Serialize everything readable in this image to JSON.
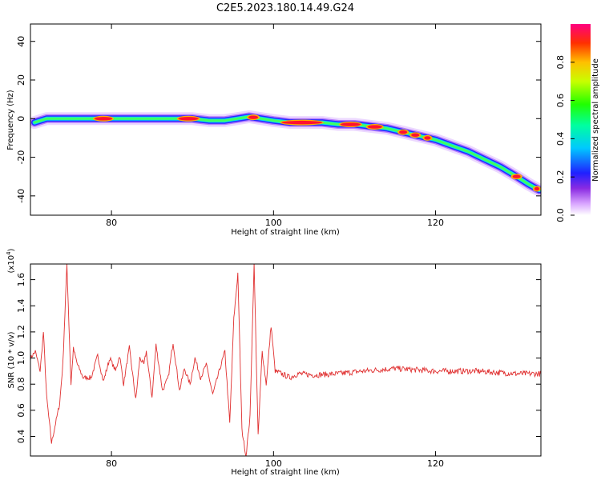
{
  "title": "C2E5.2023.180.14.49.G24",
  "spectrogram": {
    "type": "heatmap",
    "xlabel": "Height of straight line (km)",
    "ylabel": "Frequency (Hz)",
    "xlim": [
      70,
      133
    ],
    "ylim": [
      -50,
      49
    ],
    "xticks": [
      80,
      100,
      120
    ],
    "yticks": [
      40,
      20,
      0,
      -20,
      -40
    ],
    "ridge": [
      [
        70.5,
        -2
      ],
      [
        72,
        0
      ],
      [
        74,
        0
      ],
      [
        76,
        0
      ],
      [
        78,
        0
      ],
      [
        80,
        0
      ],
      [
        82,
        0
      ],
      [
        84,
        0
      ],
      [
        86,
        0
      ],
      [
        88,
        0
      ],
      [
        90,
        0
      ],
      [
        92,
        -1
      ],
      [
        94,
        -1
      ],
      [
        95.5,
        0
      ],
      [
        97,
        1
      ],
      [
        98.5,
        0
      ],
      [
        100,
        -1
      ],
      [
        102,
        -2
      ],
      [
        104,
        -2
      ],
      [
        106,
        -2
      ],
      [
        108,
        -3
      ],
      [
        110,
        -3
      ],
      [
        112,
        -4
      ],
      [
        114,
        -5
      ],
      [
        116,
        -7
      ],
      [
        118,
        -9
      ],
      [
        120,
        -11
      ],
      [
        122,
        -14
      ],
      [
        124,
        -17
      ],
      [
        126,
        -21
      ],
      [
        128,
        -25
      ],
      [
        130,
        -30
      ],
      [
        131.5,
        -34
      ],
      [
        132.8,
        -37
      ]
    ],
    "hotspots": [
      {
        "x": 79,
        "w": 2.2
      },
      {
        "x": 89.5,
        "w": 2.5
      },
      {
        "x": 97.5,
        "w": 1.2
      },
      {
        "x": 103.5,
        "w": 5
      },
      {
        "x": 109.5,
        "w": 2.5
      },
      {
        "x": 112.5,
        "w": 1.8
      },
      {
        "x": 116,
        "w": 1
      },
      {
        "x": 117.5,
        "w": 1
      },
      {
        "x": 119,
        "w": 0.8
      },
      {
        "x": 130,
        "w": 1
      },
      {
        "x": 132.5,
        "w": 0.6
      }
    ]
  },
  "colorbar": {
    "label": "Normalized spectral amplitude",
    "ticks": [
      "0.0",
      "0.2",
      "0.4",
      "0.6",
      "0.8"
    ],
    "range": [
      0,
      1
    ]
  },
  "snr": {
    "type": "line",
    "xlabel": "Height of straight line (km)",
    "ylabel": "SNR (10 * v/v)",
    "multiplier": "(x10",
    "exponent": "4",
    "multiplier_end": ")",
    "xlim": [
      70,
      133
    ],
    "ylim": [
      0.25,
      1.72
    ],
    "xticks": [
      80,
      100,
      120
    ],
    "yticks": [
      "0.4",
      "0.6",
      "0.8",
      "1.0",
      "1.2",
      "1.4",
      "1.6"
    ],
    "color": "#e03030",
    "keypoints": [
      [
        70,
        1.0
      ],
      [
        70.6,
        1.05
      ],
      [
        71.2,
        0.9
      ],
      [
        71.6,
        1.2
      ],
      [
        72.0,
        0.7
      ],
      [
        72.6,
        0.35
      ],
      [
        73.1,
        0.5
      ],
      [
        73.6,
        0.65
      ],
      [
        74.0,
        0.95
      ],
      [
        74.5,
        1.72
      ],
      [
        75.0,
        0.8
      ],
      [
        75.3,
        1.07
      ],
      [
        75.8,
        0.95
      ],
      [
        76.5,
        0.85
      ],
      [
        77.5,
        0.85
      ],
      [
        78.3,
        1.02
      ],
      [
        79.0,
        0.82
      ],
      [
        79.8,
        1.0
      ],
      [
        80.5,
        0.9
      ],
      [
        81.0,
        1.02
      ],
      [
        81.5,
        0.8
      ],
      [
        82.2,
        1.08
      ],
      [
        83.0,
        0.68
      ],
      [
        83.5,
        1.0
      ],
      [
        84.0,
        0.95
      ],
      [
        84.3,
        1.05
      ],
      [
        85.0,
        0.7
      ],
      [
        85.5,
        1.1
      ],
      [
        86.3,
        0.75
      ],
      [
        87.0,
        0.85
      ],
      [
        87.6,
        1.12
      ],
      [
        88.4,
        0.75
      ],
      [
        89.0,
        0.92
      ],
      [
        89.7,
        0.8
      ],
      [
        90.3,
        1.0
      ],
      [
        91.0,
        0.85
      ],
      [
        91.7,
        0.95
      ],
      [
        92.5,
        0.72
      ],
      [
        93.3,
        0.9
      ],
      [
        94.0,
        1.05
      ],
      [
        94.6,
        0.5
      ],
      [
        95.1,
        1.3
      ],
      [
        95.6,
        1.65
      ],
      [
        96.1,
        0.45
      ],
      [
        96.6,
        0.25
      ],
      [
        97.1,
        0.55
      ],
      [
        97.6,
        1.72
      ],
      [
        98.1,
        0.4
      ],
      [
        98.6,
        1.05
      ],
      [
        99.1,
        0.8
      ],
      [
        99.7,
        1.25
      ],
      [
        100.2,
        0.9
      ],
      [
        101,
        0.88
      ],
      [
        102,
        0.85
      ],
      [
        103,
        0.88
      ],
      [
        105,
        0.87
      ],
      [
        108,
        0.88
      ],
      [
        111,
        0.9
      ],
      [
        115,
        0.92
      ],
      [
        120,
        0.9
      ],
      [
        125,
        0.9
      ],
      [
        130,
        0.88
      ],
      [
        133,
        0.88
      ]
    ]
  }
}
